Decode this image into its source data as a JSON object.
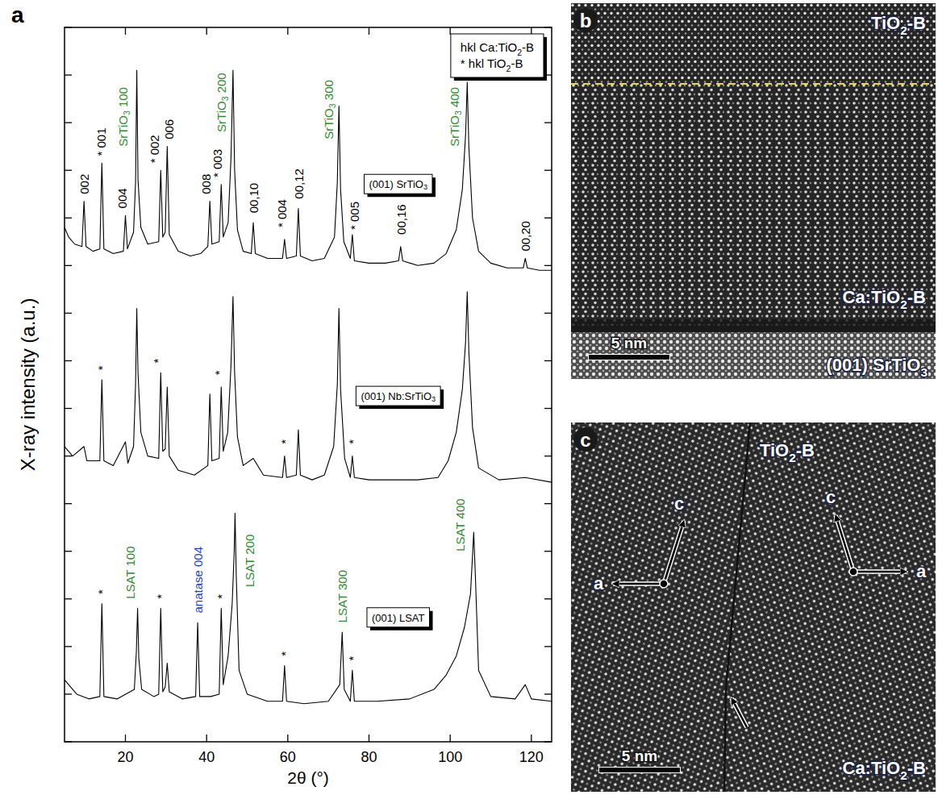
{
  "chart_data": {
    "type": "line",
    "panel_label": "a",
    "x_label": "2θ (°)",
    "y_label": "X-ray intensity (a.u.)",
    "xlim": [
      5,
      125
    ],
    "xticks": [
      20,
      40,
      60,
      80,
      100,
      120
    ],
    "ylim": [
      0,
      30
    ],
    "yticks": [
      0,
      2,
      4,
      6,
      8,
      10,
      12,
      14,
      16,
      18,
      20,
      22,
      24,
      26,
      28,
      30
    ],
    "tick_labels": "x",
    "legend": "top-right",
    "key": [
      "hkl Ca:TiO2-B",
      "* hkl TiO2-B"
    ],
    "series": [
      {
        "name": "(001) SrTiO3",
        "color": "#000000",
        "x": [
          5,
          6,
          7.5,
          9.3,
          9.8,
          10.3,
          12,
          13.7,
          14.2,
          14.7,
          17,
          19.5,
          20.0,
          20.5,
          22.0,
          22.5,
          22.8,
          23.1,
          23.8,
          25.5,
          28.2,
          28.7,
          29.2,
          29.8,
          30.3,
          30.8,
          33,
          36,
          38.5,
          40.3,
          40.8,
          41.3,
          43.1,
          43.6,
          44.1,
          45.3,
          46.0,
          46.5,
          46.9,
          47.6,
          49,
          51.0,
          51.5,
          52.0,
          55,
          58.7,
          59.2,
          59.7,
          62.1,
          62.6,
          63.1,
          66,
          69,
          71.5,
          72.2,
          72.6,
          73.0,
          73.8,
          75.4,
          75.9,
          76.4,
          80,
          84,
          87.3,
          87.8,
          88.3,
          92,
          96,
          99,
          101.5,
          103.0,
          103.8,
          104.2,
          104.6,
          105.5,
          107,
          110,
          114,
          118.0,
          118.5,
          119.0,
          122,
          125
        ],
        "values": [
          21.6,
          21.2,
          20.9,
          20.8,
          22.7,
          20.8,
          20.6,
          20.7,
          24.3,
          20.7,
          20.5,
          20.6,
          22.1,
          20.7,
          21.4,
          23.5,
          28.2,
          23.6,
          21.6,
          20.9,
          21.0,
          24.0,
          21.2,
          21.4,
          25.0,
          21.3,
          20.6,
          20.4,
          20.5,
          20.8,
          22.7,
          20.9,
          21.0,
          23.4,
          21.2,
          21.8,
          24.5,
          28.2,
          24.0,
          21.5,
          20.6,
          20.5,
          21.8,
          20.5,
          20.3,
          20.3,
          21.1,
          20.3,
          20.4,
          22.4,
          20.4,
          20.2,
          20.3,
          21.2,
          23.5,
          26.7,
          23.2,
          21.0,
          20.3,
          21.3,
          20.2,
          20.1,
          20.1,
          20.2,
          20.8,
          20.2,
          20.0,
          20.1,
          20.5,
          21.5,
          23.2,
          25.5,
          27.7,
          25.0,
          22.0,
          20.6,
          20.1,
          19.9,
          19.9,
          20.3,
          19.9,
          19.8,
          19.8
        ]
      },
      {
        "name": "(001) Nb:SrTiO3",
        "color": "#000000",
        "x": [
          5,
          7,
          9.8,
          10.5,
          13.7,
          14.2,
          14.7,
          17,
          20.0,
          20.6,
          22.0,
          22.5,
          22.8,
          23.1,
          23.8,
          25.5,
          28.2,
          28.7,
          29.2,
          29.8,
          30.3,
          30.8,
          33,
          37,
          40.3,
          40.8,
          41.3,
          43.1,
          43.6,
          44.1,
          45.2,
          46.0,
          46.5,
          46.9,
          47.6,
          49,
          51.5,
          54,
          58.7,
          59.2,
          59.7,
          62.1,
          62.6,
          63.1,
          66,
          69,
          71.3,
          72.2,
          72.6,
          73.0,
          74.0,
          75.4,
          75.9,
          76.4,
          80,
          86,
          92,
          97,
          99.5,
          101.5,
          103.0,
          103.8,
          104.2,
          104.6,
          105.5,
          107,
          112,
          118.5,
          125
        ],
        "values": [
          12.4,
          12.0,
          12.4,
          11.8,
          11.8,
          15.2,
          11.8,
          11.6,
          12.6,
          11.7,
          12.4,
          15.0,
          18.2,
          15.5,
          13.0,
          12.0,
          11.9,
          15.5,
          12.2,
          12.3,
          14.9,
          12.0,
          11.4,
          11.2,
          11.6,
          14.6,
          11.8,
          11.9,
          14.9,
          12.2,
          13.0,
          15.8,
          18.7,
          15.5,
          12.8,
          11.6,
          11.9,
          11.2,
          11.1,
          12.0,
          11.1,
          11.2,
          13.1,
          11.2,
          11.0,
          11.2,
          12.4,
          15.0,
          18.2,
          14.8,
          11.9,
          11.1,
          12.0,
          11.1,
          11.0,
          11.0,
          11.0,
          11.1,
          11.8,
          13.0,
          14.8,
          16.8,
          18.9,
          16.4,
          13.2,
          11.5,
          11.0,
          11.1,
          10.9
        ]
      },
      {
        "name": "(001) LSAT",
        "color": "#000000",
        "x": [
          5,
          8,
          11,
          13.7,
          14.2,
          14.7,
          18,
          22.2,
          22.7,
          23.0,
          23.3,
          24,
          27,
          28.2,
          28.7,
          29.2,
          29.8,
          30.3,
          30.8,
          34,
          37.3,
          37.8,
          38.3,
          41,
          43.1,
          43.6,
          44.1,
          45.3,
          46.3,
          46.8,
          47.0,
          47.3,
          48.0,
          50,
          55,
          58.7,
          59.2,
          59.7,
          64,
          70,
          72.8,
          73.4,
          73.9,
          75.4,
          75.9,
          76.4,
          82,
          90,
          96,
          99,
          101.5,
          103.5,
          105.0,
          105.5,
          105.8,
          106.2,
          107,
          110,
          116,
          118.5,
          120,
          125
        ],
        "values": [
          2.6,
          2.0,
          1.8,
          1.9,
          5.8,
          1.9,
          1.8,
          2.2,
          3.8,
          5.6,
          3.5,
          2.2,
          1.9,
          2.0,
          5.6,
          2.1,
          2.3,
          3.3,
          2.1,
          1.8,
          1.9,
          5.0,
          1.9,
          1.9,
          2.0,
          5.6,
          2.4,
          3.6,
          5.8,
          8.0,
          9.6,
          7.0,
          3.0,
          2.0,
          1.7,
          1.7,
          3.2,
          1.7,
          1.6,
          1.7,
          2.4,
          4.6,
          2.2,
          1.7,
          3.0,
          1.7,
          1.7,
          1.8,
          2.2,
          2.8,
          3.6,
          4.8,
          6.2,
          7.8,
          8.8,
          7.0,
          3.0,
          1.9,
          1.8,
          2.4,
          1.8,
          1.7
        ]
      }
    ],
    "annotations": [
      {
        "text": "002",
        "x": 9.8,
        "y": 23.0,
        "color": "#000000"
      },
      {
        "text": "* 001",
        "x": 14.0,
        "y": 24.6,
        "color": "#000000"
      },
      {
        "text": "004",
        "x": 19.2,
        "y": 22.4,
        "color": "#000000"
      },
      {
        "text": "SrTiO3 100",
        "x": 19.4,
        "y": 25.0,
        "color": "#2e8b2e"
      },
      {
        "text": "* 002",
        "x": 27.0,
        "y": 24.3,
        "color": "#000000"
      },
      {
        "text": "006",
        "x": 30.6,
        "y": 25.3,
        "color": "#000000"
      },
      {
        "text": "008",
        "x": 39.8,
        "y": 23.0,
        "color": "#000000"
      },
      {
        "text": "* 003",
        "x": 42.6,
        "y": 23.7,
        "color": "#000000"
      },
      {
        "text": "SrTiO3 200",
        "x": 43.6,
        "y": 25.6,
        "color": "#2e8b2e"
      },
      {
        "text": "00,10",
        "x": 51.5,
        "y": 22.2,
        "color": "#000000"
      },
      {
        "text": "* 004",
        "x": 58.5,
        "y": 21.6,
        "color": "#000000"
      },
      {
        "text": "00,12",
        "x": 62.6,
        "y": 22.8,
        "color": "#000000"
      },
      {
        "text": "SrTiO3 300",
        "x": 70.0,
        "y": 25.3,
        "color": "#2e8b2e"
      },
      {
        "text": "* 005",
        "x": 76.4,
        "y": 21.5,
        "color": "#000000"
      },
      {
        "text": "00,16",
        "x": 87.8,
        "y": 21.3,
        "color": "#000000"
      },
      {
        "text": "SrTiO3 400",
        "x": 101.0,
        "y": 25.0,
        "color": "#2e8b2e"
      },
      {
        "text": "00,20",
        "x": 118.5,
        "y": 20.6,
        "color": "#000000"
      },
      {
        "text": "*",
        "x": 14.2,
        "y": 15.6,
        "color": "#000000"
      },
      {
        "text": "*",
        "x": 27.8,
        "y": 15.9,
        "color": "#000000"
      },
      {
        "text": "*",
        "x": 43.0,
        "y": 15.4,
        "color": "#000000"
      },
      {
        "text": "*",
        "x": 59.2,
        "y": 12.5,
        "color": "#000000"
      },
      {
        "text": "*",
        "x": 75.9,
        "y": 12.5,
        "color": "#000000"
      },
      {
        "text": "*",
        "x": 14.2,
        "y": 6.2,
        "color": "#000000"
      },
      {
        "text": "LSAT 100",
        "x": 21.0,
        "y": 6.0,
        "color": "#2e8b2e"
      },
      {
        "text": "*",
        "x": 28.7,
        "y": 6.0,
        "color": "#000000"
      },
      {
        "text": "anatase 004",
        "x": 37.8,
        "y": 5.4,
        "color": "#1f3fd0"
      },
      {
        "text": "*",
        "x": 43.6,
        "y": 6.0,
        "color": "#000000"
      },
      {
        "text": "LSAT 200",
        "x": 50.5,
        "y": 6.5,
        "color": "#2e8b2e"
      },
      {
        "text": "*",
        "x": 59.2,
        "y": 3.6,
        "color": "#000000"
      },
      {
        "text": "LSAT 300",
        "x": 73.4,
        "y": 5.0,
        "color": "#2e8b2e"
      },
      {
        "text": "*",
        "x": 75.9,
        "y": 3.4,
        "color": "#000000"
      },
      {
        "text": "LSAT 400",
        "x": 102.3,
        "y": 8.0,
        "color": "#2e8b2e"
      }
    ]
  },
  "micrographs": [
    {
      "panel_label": "b",
      "labels": {
        "film_top": "TiO2-B",
        "film": "Ca:TiO2-B",
        "substrate": "(001) SrTiO3"
      },
      "scale_bar": "5 nm"
    },
    {
      "panel_label": "c",
      "labels": {
        "film_top": "TiO2-B",
        "film": "Ca:TiO2-B"
      },
      "axis_labels": [
        "a",
        "c"
      ],
      "scale_bar": "5 nm"
    }
  ]
}
